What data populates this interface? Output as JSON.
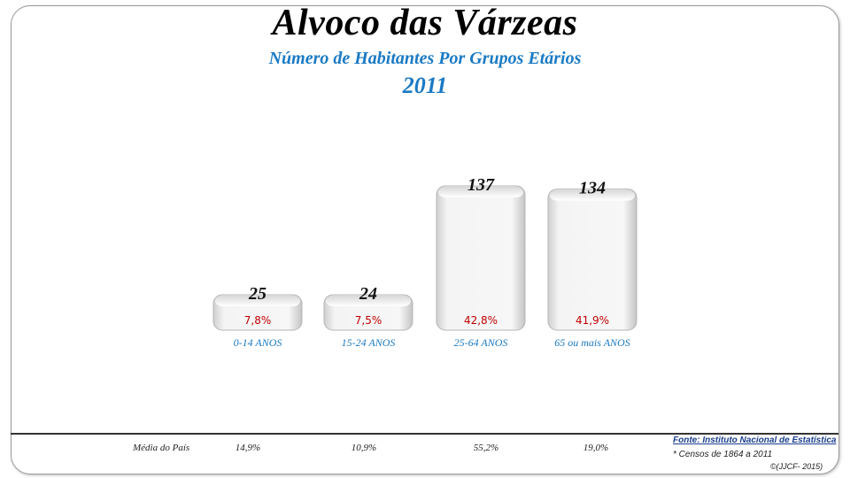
{
  "chart_data": {
    "type": "bar",
    "title": "Alvoco das Várzeas",
    "subtitle": "Número de Habitantes Por Grupos Etários",
    "year": "2011",
    "categories": [
      "0-14 ANOS",
      "15-24 ANOS",
      "25-64 ANOS",
      "65 ou mais ANOS"
    ],
    "values": [
      25,
      24,
      137,
      134
    ],
    "percent_labels": [
      "7,8%",
      "7,5%",
      "42,8%",
      "41,9%"
    ],
    "ylim": [
      0,
      137
    ],
    "grid": false,
    "legend": "none",
    "colors": {
      "bar": "#efefef",
      "value_text": "#111111",
      "percent_text": "#c00000",
      "category_text": "#1a7ac4"
    }
  },
  "footer": {
    "label": "Média do País",
    "national_averages": [
      "14,9%",
      "10,9%",
      "55,2%",
      "19,0%"
    ],
    "source": "Fonte: Instituto Nacional de Estatística",
    "census_note": "* Censos de 1864 a 2011",
    "copyright": "©(JJCF- 2015)"
  }
}
